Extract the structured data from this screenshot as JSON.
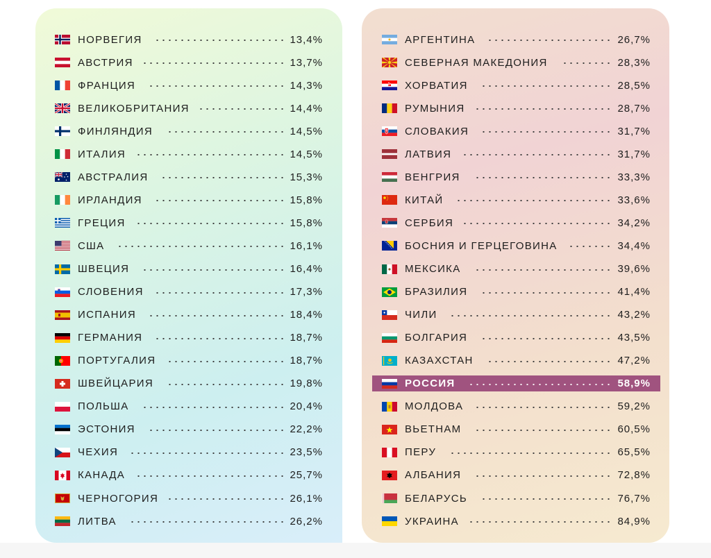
{
  "chart_data": {
    "type": "table",
    "columns": [
      {
        "rows": [
          {
            "country": "НОРВЕГИЯ",
            "value": "13,4%",
            "flag": "norway"
          },
          {
            "country": "АВСТРИЯ",
            "value": "13,7%",
            "flag": "austria"
          },
          {
            "country": "ФРАНЦИЯ",
            "value": "14,3%",
            "flag": "france"
          },
          {
            "country": "ВЕЛИКОБРИТАНИЯ",
            "value": "14,4%",
            "flag": "uk"
          },
          {
            "country": "ФИНЛЯНДИЯ",
            "value": "14,5%",
            "flag": "finland"
          },
          {
            "country": "ИТАЛИЯ",
            "value": "14,5%",
            "flag": "italy"
          },
          {
            "country": "АВСТРАЛИЯ",
            "value": "15,3%",
            "flag": "australia"
          },
          {
            "country": "ИРЛАНДИЯ",
            "value": "15,8%",
            "flag": "ireland"
          },
          {
            "country": "ГРЕЦИЯ",
            "value": "15,8%",
            "flag": "greece"
          },
          {
            "country": "США",
            "value": "16,1%",
            "flag": "usa"
          },
          {
            "country": "ШВЕЦИЯ",
            "value": "16,4%",
            "flag": "sweden"
          },
          {
            "country": "СЛОВЕНИЯ",
            "value": "17,3%",
            "flag": "slovenia"
          },
          {
            "country": "ИСПАНИЯ",
            "value": "18,4%",
            "flag": "spain"
          },
          {
            "country": "ГЕРМАНИЯ",
            "value": "18,7%",
            "flag": "germany"
          },
          {
            "country": "ПОРТУГАЛИЯ",
            "value": "18,7%",
            "flag": "portugal"
          },
          {
            "country": "ШВЕЙЦАРИЯ",
            "value": "19,8%",
            "flag": "switzerland"
          },
          {
            "country": "ПОЛЬША",
            "value": "20,4%",
            "flag": "poland"
          },
          {
            "country": "ЭСТОНИЯ",
            "value": "22,2%",
            "flag": "estonia"
          },
          {
            "country": "ЧЕХИЯ",
            "value": "23,5%",
            "flag": "czechia"
          },
          {
            "country": "КАНАДА",
            "value": "25,7%",
            "flag": "canada"
          },
          {
            "country": "ЧЕРНОГОРИЯ",
            "value": "26,1%",
            "flag": "montenegro"
          },
          {
            "country": "ЛИТВА",
            "value": "26,2%",
            "flag": "lithuania"
          }
        ]
      },
      {
        "rows": [
          {
            "country": "АРГЕНТИНА",
            "value": "26,7%",
            "flag": "argentina"
          },
          {
            "country": "СЕВЕРНАЯ МАКЕДОНИЯ",
            "value": "28,3%",
            "flag": "north-macedonia"
          },
          {
            "country": "ХОРВАТИЯ",
            "value": "28,5%",
            "flag": "croatia"
          },
          {
            "country": "РУМЫНИЯ",
            "value": "28,7%",
            "flag": "romania"
          },
          {
            "country": "СЛОВАКИЯ",
            "value": "31,7%",
            "flag": "slovakia"
          },
          {
            "country": "ЛАТВИЯ",
            "value": "31,7%",
            "flag": "latvia"
          },
          {
            "country": "ВЕНГРИЯ",
            "value": "33,3%",
            "flag": "hungary"
          },
          {
            "country": "КИТАЙ",
            "value": "33,6%",
            "flag": "china"
          },
          {
            "country": "СЕРБИЯ",
            "value": "34,2%",
            "flag": "serbia"
          },
          {
            "country": "БОСНИЯ И ГЕРЦЕГОВИНА",
            "value": "34,4%",
            "flag": "bosnia"
          },
          {
            "country": "МЕКСИКА",
            "value": "39,6%",
            "flag": "mexico"
          },
          {
            "country": "БРАЗИЛИЯ",
            "value": "41,4%",
            "flag": "brazil"
          },
          {
            "country": "ЧИЛИ",
            "value": "43,2%",
            "flag": "chile"
          },
          {
            "country": "БОЛГАРИЯ",
            "value": "43,5%",
            "flag": "bulgaria"
          },
          {
            "country": "КАЗАХСТАН",
            "value": "47,2%",
            "flag": "kazakhstan"
          },
          {
            "country": "РОССИЯ",
            "value": "58,9%",
            "flag": "russia",
            "highlight": true
          },
          {
            "country": "МОЛДОВА",
            "value": "59,2%",
            "flag": "moldova"
          },
          {
            "country": "ВЬЕТНАМ",
            "value": "60,5%",
            "flag": "vietnam"
          },
          {
            "country": "ПЕРУ",
            "value": "65,5%",
            "flag": "peru"
          },
          {
            "country": "АЛБАНИЯ",
            "value": "72,8%",
            "flag": "albania"
          },
          {
            "country": "БЕЛАРУСЬ",
            "value": "76,7%",
            "flag": "belarus"
          },
          {
            "country": "УКРАИНА",
            "value": "84,9%",
            "flag": "ukraine"
          }
        ]
      }
    ],
    "highlight_color": "#a0537f"
  }
}
